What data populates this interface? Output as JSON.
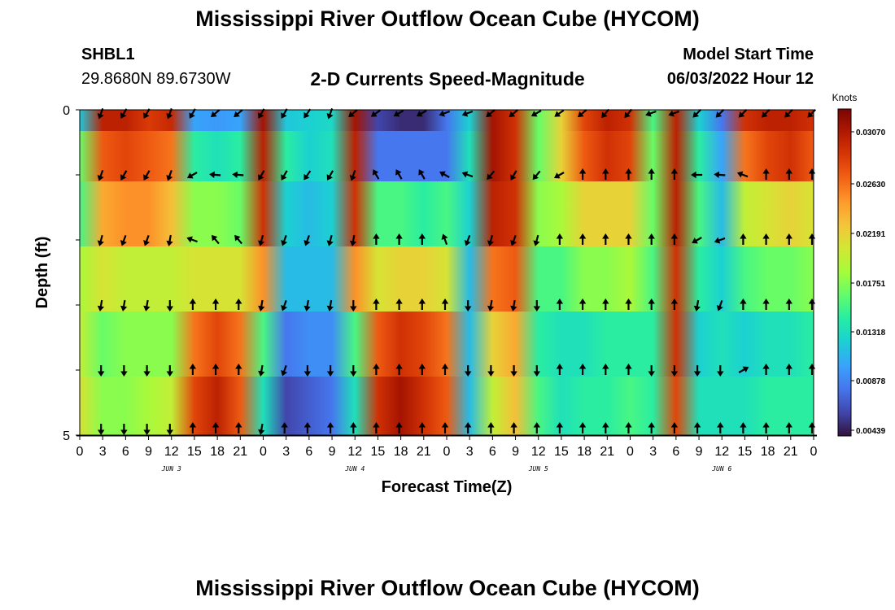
{
  "header": {
    "title": "Mississippi River Outflow Ocean Cube (HYCOM)",
    "station": "SHBL1",
    "coords": "29.8680N  89.6730W",
    "subtitle": "2-D Currents Speed-Magnitude",
    "model_start_label": "Model Start Time",
    "model_start_value": "06/03/2022 Hour 12"
  },
  "footer": {
    "repeat_title": "Mississippi River Outflow Ocean Cube (HYCOM)"
  },
  "chart_data": {
    "type": "heatmap",
    "xlabel": "Forecast Time(Z)",
    "ylabel": "Depth (ft)",
    "x_tick_labels": [
      "0",
      "3",
      "6",
      "9",
      "12",
      "15",
      "18",
      "21",
      "0",
      "3",
      "6",
      "9",
      "12",
      "15",
      "18",
      "21",
      "0",
      "3",
      "6",
      "9",
      "12",
      "15",
      "18",
      "21",
      "0",
      "3",
      "6",
      "9",
      "12",
      "15",
      "18",
      "21",
      "0"
    ],
    "date_labels": [
      "JUN 3",
      "JUN 4",
      "JUN 5",
      "JUN 6"
    ],
    "y_tick_labels": [
      "0",
      "5"
    ],
    "ylim": [
      5,
      0
    ],
    "colorbar": {
      "title": "Knots",
      "ticks": [
        "0.03070",
        "0.02630",
        "0.02191",
        "0.01751",
        "0.01318",
        "0.00878",
        "0.00439"
      ],
      "colors": [
        "#30123b",
        "#4145ab",
        "#4675ed",
        "#39a2fc",
        "#1bcfd4",
        "#24eca6",
        "#61fc6c",
        "#a4fc3b",
        "#d1e834",
        "#f3c63a",
        "#fe9b2d",
        "#f36315",
        "#d93806",
        "#b11901",
        "#7a0403"
      ]
    },
    "depth_rows_ft": [
      0.05,
      0.6,
      1.6,
      2.6,
      3.6,
      4.6
    ],
    "hours": [
      0,
      3,
      6,
      9,
      12,
      15,
      18,
      21,
      24,
      27,
      30,
      33,
      36,
      39,
      42,
      45,
      48,
      51,
      54,
      57,
      60,
      63,
      66,
      69,
      72,
      75,
      78,
      81,
      84,
      87,
      90,
      93,
      96
    ],
    "speed_knots": [
      [
        0.0115,
        0.029,
        0.029,
        0.0275,
        0.0285,
        0.01,
        0.0095,
        0.01,
        0.03,
        0.0115,
        0.012,
        0.0125,
        0.03,
        0.006,
        0.005,
        0.005,
        0.008,
        0.012,
        0.03,
        0.028,
        0.016,
        0.021,
        0.027,
        0.029,
        0.028,
        0.015,
        0.029,
        0.012,
        0.008,
        0.028,
        0.029,
        0.029,
        0.028
      ],
      [
        0.016,
        0.026,
        0.027,
        0.026,
        0.025,
        0.014,
        0.013,
        0.014,
        0.029,
        0.014,
        0.012,
        0.013,
        0.029,
        0.008,
        0.008,
        0.008,
        0.008,
        0.013,
        0.03,
        0.028,
        0.016,
        0.021,
        0.026,
        0.028,
        0.027,
        0.016,
        0.029,
        0.014,
        0.01,
        0.025,
        0.027,
        0.028,
        0.026
      ],
      [
        0.015,
        0.023,
        0.024,
        0.024,
        0.022,
        0.017,
        0.017,
        0.016,
        0.028,
        0.012,
        0.011,
        0.012,
        0.028,
        0.015,
        0.015,
        0.014,
        0.015,
        0.012,
        0.029,
        0.028,
        0.017,
        0.018,
        0.021,
        0.021,
        0.021,
        0.016,
        0.029,
        0.015,
        0.011,
        0.019,
        0.02,
        0.021,
        0.02
      ],
      [
        0.018,
        0.02,
        0.019,
        0.019,
        0.019,
        0.02,
        0.02,
        0.02,
        0.024,
        0.011,
        0.011,
        0.011,
        0.024,
        0.02,
        0.021,
        0.021,
        0.02,
        0.011,
        0.025,
        0.026,
        0.015,
        0.015,
        0.017,
        0.017,
        0.018,
        0.015,
        0.028,
        0.014,
        0.012,
        0.015,
        0.016,
        0.016,
        0.017
      ],
      [
        0.019,
        0.016,
        0.017,
        0.017,
        0.017,
        0.025,
        0.027,
        0.025,
        0.015,
        0.008,
        0.009,
        0.009,
        0.015,
        0.026,
        0.028,
        0.027,
        0.025,
        0.011,
        0.021,
        0.023,
        0.014,
        0.013,
        0.013,
        0.014,
        0.014,
        0.014,
        0.028,
        0.012,
        0.013,
        0.012,
        0.013,
        0.013,
        0.014
      ],
      [
        0.02,
        0.017,
        0.017,
        0.018,
        0.019,
        0.027,
        0.029,
        0.026,
        0.013,
        0.006,
        0.007,
        0.008,
        0.013,
        0.028,
        0.03,
        0.028,
        0.026,
        0.011,
        0.019,
        0.022,
        0.015,
        0.013,
        0.014,
        0.014,
        0.015,
        0.014,
        0.027,
        0.013,
        0.013,
        0.013,
        0.014,
        0.014,
        0.014
      ]
    ],
    "arrow_rows_ft": [
      0.05,
      1.0,
      2.0,
      3.0,
      4.0,
      4.9
    ],
    "arrow_hours": [
      3,
      6,
      9,
      12,
      15,
      18,
      21,
      24,
      27,
      30,
      33,
      36,
      39,
      42,
      45,
      48,
      51,
      54,
      57,
      60,
      63,
      66,
      69,
      72,
      75,
      78,
      81,
      84,
      87,
      90,
      93,
      96
    ],
    "arrow_dir_deg": [
      [
        200,
        210,
        210,
        200,
        210,
        230,
        230,
        210,
        210,
        215,
        200,
        230,
        235,
        240,
        240,
        250,
        250,
        230,
        230,
        240,
        235,
        230,
        220,
        220,
        250,
        250,
        225,
        225,
        225,
        225,
        225,
        225
      ],
      [
        200,
        210,
        210,
        200,
        240,
        275,
        275,
        210,
        210,
        215,
        210,
        200,
        330,
        330,
        330,
        300,
        290,
        220,
        210,
        220,
        240,
        0,
        0,
        0,
        0,
        0,
        270,
        275,
        290,
        0,
        0,
        0
      ],
      [
        195,
        200,
        200,
        190,
        290,
        320,
        320,
        195,
        200,
        200,
        195,
        190,
        0,
        0,
        0,
        340,
        200,
        195,
        200,
        195,
        0,
        0,
        0,
        0,
        0,
        0,
        240,
        250,
        0,
        0,
        0,
        0
      ],
      [
        190,
        190,
        190,
        180,
        0,
        0,
        0,
        190,
        200,
        190,
        190,
        180,
        0,
        0,
        0,
        0,
        180,
        190,
        190,
        180,
        0,
        0,
        0,
        0,
        0,
        0,
        190,
        200,
        0,
        0,
        0,
        0
      ],
      [
        180,
        180,
        180,
        180,
        0,
        0,
        0,
        190,
        200,
        180,
        180,
        180,
        0,
        0,
        0,
        0,
        180,
        180,
        180,
        180,
        0,
        0,
        0,
        0,
        180,
        180,
        180,
        180,
        60,
        0,
        0,
        0
      ],
      [
        180,
        180,
        180,
        180,
        0,
        0,
        0,
        190,
        0,
        0,
        0,
        0,
        0,
        0,
        0,
        0,
        0,
        0,
        0,
        0,
        0,
        0,
        0,
        0,
        0,
        0,
        0,
        0,
        0,
        0,
        0,
        0
      ]
    ]
  }
}
